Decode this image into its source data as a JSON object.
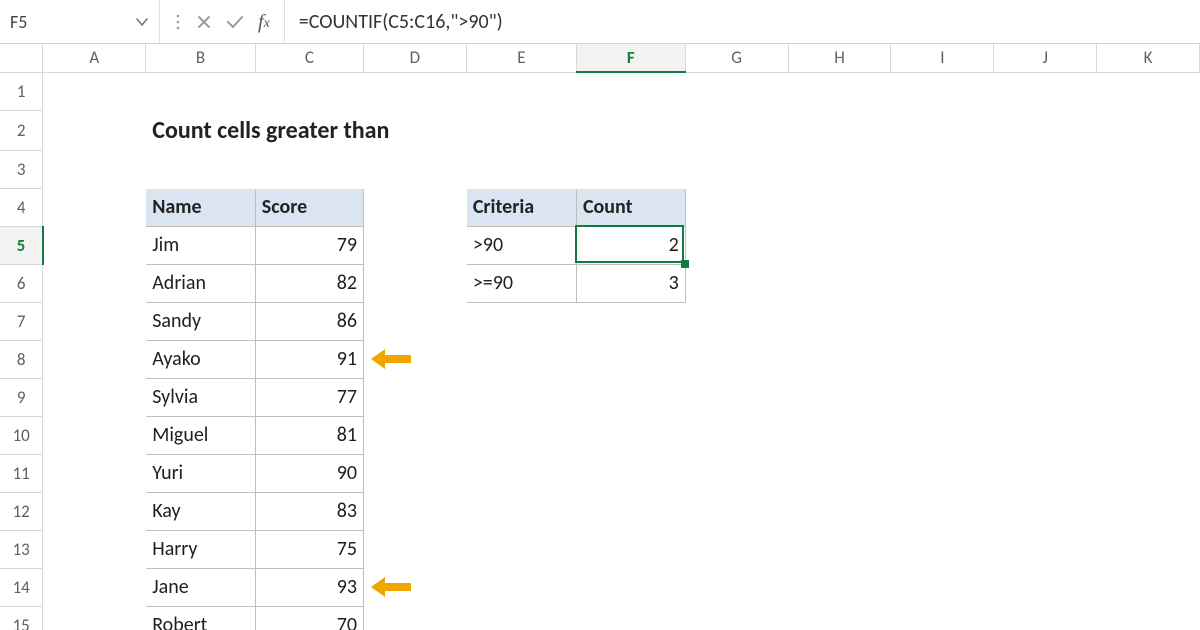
{
  "name_box": "F5",
  "formula": "=COUNTIF(C5:C16,\">90\")",
  "colors": {
    "grid": "#d8d8d8",
    "border": "#bfbfbf",
    "header_fill": "#dbe5f1",
    "selection": "#107c41",
    "arrow": "#f1a500",
    "text": "#1f1f1f",
    "title_text": "#222222",
    "icon_grey": "#a0a0a0"
  },
  "columns": [
    "A",
    "B",
    "C",
    "D",
    "E",
    "F",
    "G",
    "H",
    "I",
    "J",
    "K"
  ],
  "rows": [
    "1",
    "2",
    "3",
    "4",
    "5",
    "6",
    "7",
    "8",
    "9",
    "10",
    "11",
    "12",
    "13",
    "14",
    "15"
  ],
  "selected": {
    "col": "F",
    "row": "5"
  },
  "title": "Count cells greater than",
  "table1": {
    "header_name": "Name",
    "header_score": "Score",
    "rows": [
      {
        "name": "Jim",
        "score": 79
      },
      {
        "name": "Adrian",
        "score": 82
      },
      {
        "name": "Sandy",
        "score": 86
      },
      {
        "name": "Ayako",
        "score": 91
      },
      {
        "name": "Sylvia",
        "score": 77
      },
      {
        "name": "Miguel",
        "score": 81
      },
      {
        "name": "Yuri",
        "score": 90
      },
      {
        "name": "Kay",
        "score": 83
      },
      {
        "name": "Harry",
        "score": 75
      },
      {
        "name": "Jane",
        "score": 93
      },
      {
        "name": "Robert",
        "score": 70
      }
    ]
  },
  "table2": {
    "header_criteria": "Criteria",
    "header_count": "Count",
    "rows": [
      {
        "criteria": ">90",
        "count": 2
      },
      {
        "criteria": ">=90",
        "count": 3
      }
    ]
  },
  "arrow_rows": [
    8,
    14
  ]
}
